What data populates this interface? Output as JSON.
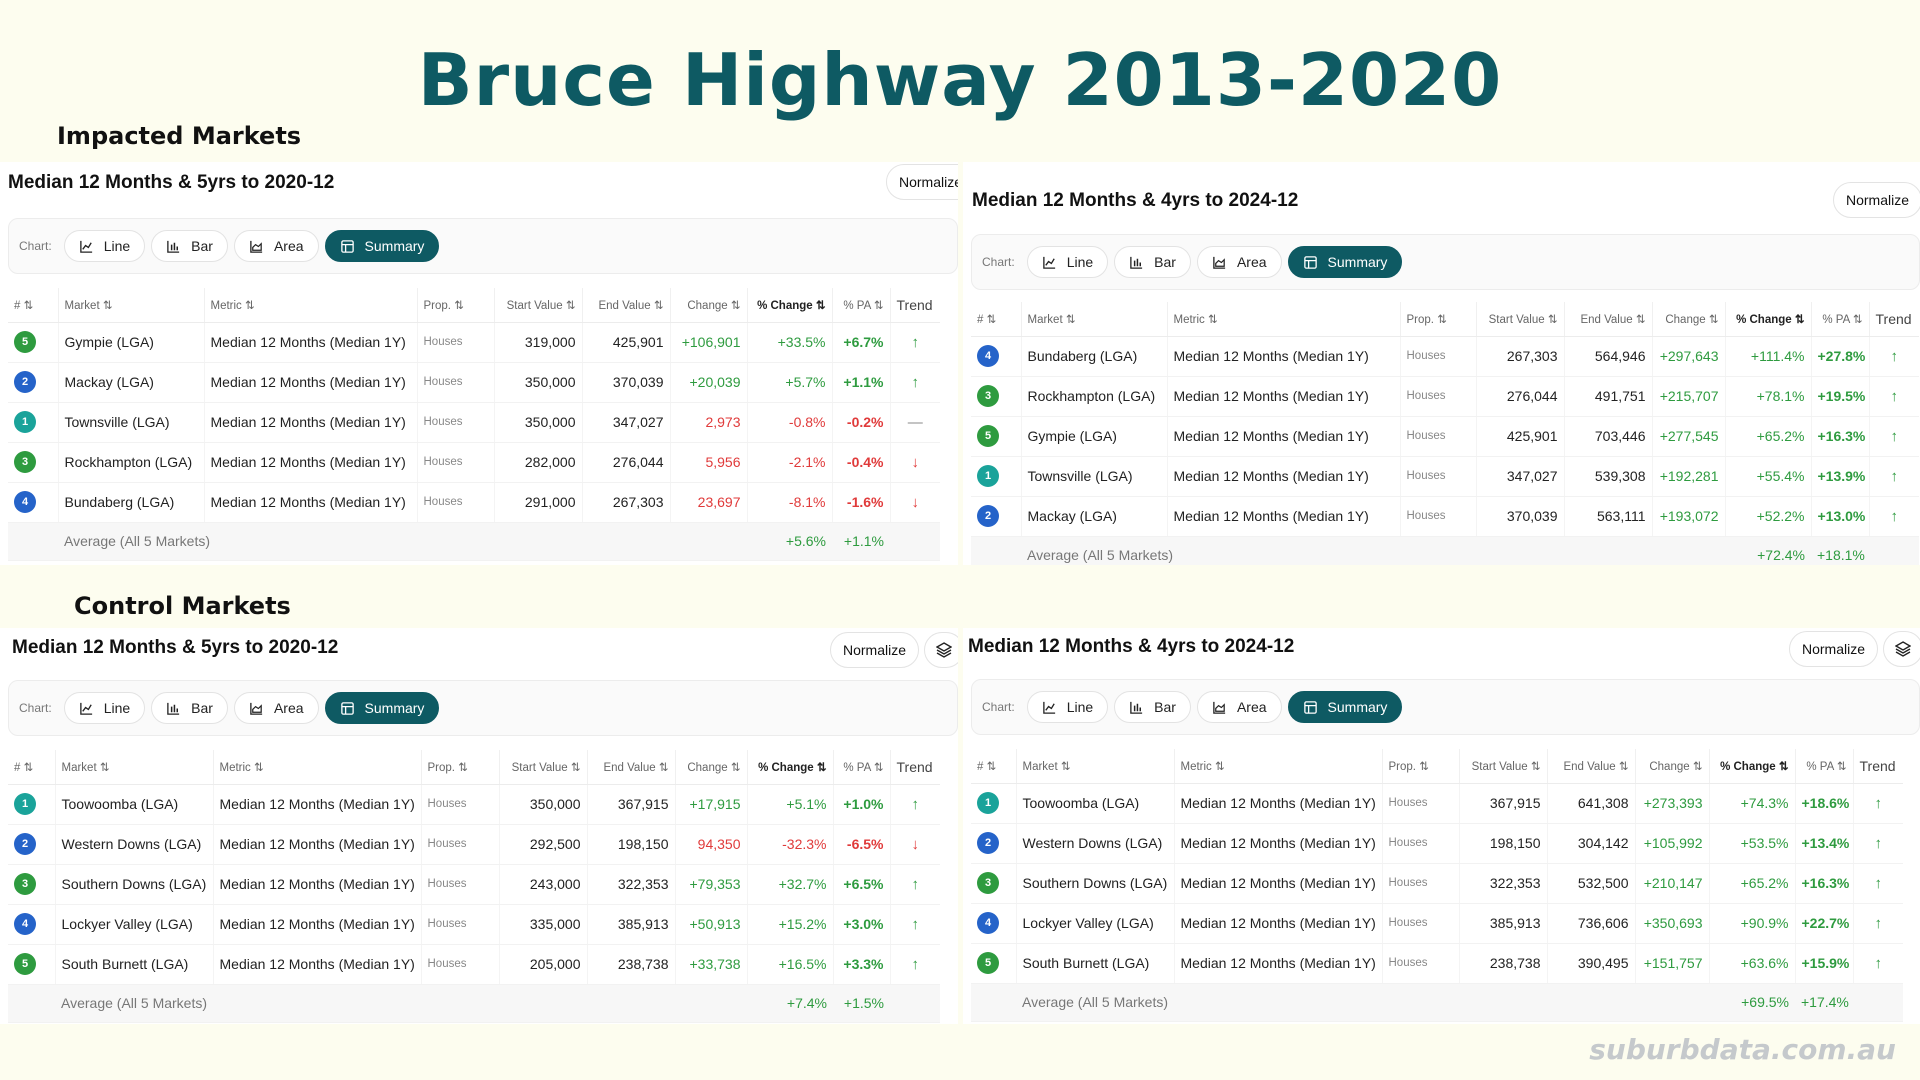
{
  "title": "Bruce Highway 2013-2020",
  "sections": {
    "impacted": "Impacted Markets",
    "control": "Control Markets"
  },
  "watermark": "suburbdata.com.au",
  "common": {
    "normalize": "Normalize",
    "chart_label": "Chart:",
    "chart_buttons": {
      "line": "Line",
      "bar": "Bar",
      "area": "Area",
      "summary": "Summary"
    },
    "columns": {
      "rank": "#",
      "market": "Market",
      "metric": "Metric",
      "prop": "Prop.",
      "start": "Start Value",
      "end": "End Value",
      "change": "Change",
      "pct_change": "% Change",
      "pa": "% PA",
      "trend": "Trend"
    },
    "sort_glyph": "⇅",
    "avg_label": "Average (All 5 Markets)"
  },
  "colors": {
    "accent": "#0e5a63",
    "positive": "#2e9b3f",
    "negative": "#e03a3a",
    "rank_green": "#2e9b3f",
    "rank_blue": "#2563c9",
    "rank_teal": "#1aa39a"
  },
  "panels": [
    {
      "title": "Median 12 Months & 5yrs to 2020-12",
      "rows": [
        {
          "rank": "5",
          "rank_color": "green",
          "market": "Gympie (LGA)",
          "metric": "Median 12 Months (Median 1Y)",
          "prop": "Houses",
          "start": "319,000",
          "end": "425,901",
          "change": "+106,901",
          "pct": "+33.5%",
          "pa": "+6.7%",
          "trend": "up"
        },
        {
          "rank": "2",
          "rank_color": "blue",
          "market": "Mackay (LGA)",
          "metric": "Median 12 Months (Median 1Y)",
          "prop": "Houses",
          "start": "350,000",
          "end": "370,039",
          "change": "+20,039",
          "pct": "+5.7%",
          "pa": "+1.1%",
          "trend": "up"
        },
        {
          "rank": "1",
          "rank_color": "teal",
          "market": "Townsville (LGA)",
          "metric": "Median 12 Months (Median 1Y)",
          "prop": "Houses",
          "start": "350,000",
          "end": "347,027",
          "change": "2,973",
          "pct": "-0.8%",
          "pa": "-0.2%",
          "trend": "flat"
        },
        {
          "rank": "3",
          "rank_color": "green",
          "market": "Rockhampton (LGA)",
          "metric": "Median 12 Months (Median 1Y)",
          "prop": "Houses",
          "start": "282,000",
          "end": "276,044",
          "change": "5,956",
          "pct": "-2.1%",
          "pa": "-0.4%",
          "trend": "down"
        },
        {
          "rank": "4",
          "rank_color": "blue",
          "market": "Bundaberg (LGA)",
          "metric": "Median 12 Months (Median 1Y)",
          "prop": "Houses",
          "start": "291,000",
          "end": "267,303",
          "change": "23,697",
          "pct": "-8.1%",
          "pa": "-1.6%",
          "trend": "down"
        }
      ],
      "avg": {
        "pct": "+5.6%",
        "pa": "+1.1%"
      }
    },
    {
      "title": "Median 12 Months & 4yrs to 2024-12",
      "rows": [
        {
          "rank": "4",
          "rank_color": "blue",
          "market": "Bundaberg (LGA)",
          "metric": "Median 12 Months (Median 1Y)",
          "prop": "Houses",
          "start": "267,303",
          "end": "564,946",
          "change": "+297,643",
          "pct": "+111.4%",
          "pa": "+27.8%",
          "trend": "up"
        },
        {
          "rank": "3",
          "rank_color": "green",
          "market": "Rockhampton (LGA)",
          "metric": "Median 12 Months (Median 1Y)",
          "prop": "Houses",
          "start": "276,044",
          "end": "491,751",
          "change": "+215,707",
          "pct": "+78.1%",
          "pa": "+19.5%",
          "trend": "up"
        },
        {
          "rank": "5",
          "rank_color": "green",
          "market": "Gympie (LGA)",
          "metric": "Median 12 Months (Median 1Y)",
          "prop": "Houses",
          "start": "425,901",
          "end": "703,446",
          "change": "+277,545",
          "pct": "+65.2%",
          "pa": "+16.3%",
          "trend": "up"
        },
        {
          "rank": "1",
          "rank_color": "teal",
          "market": "Townsville (LGA)",
          "metric": "Median 12 Months (Median 1Y)",
          "prop": "Houses",
          "start": "347,027",
          "end": "539,308",
          "change": "+192,281",
          "pct": "+55.4%",
          "pa": "+13.9%",
          "trend": "up"
        },
        {
          "rank": "2",
          "rank_color": "blue",
          "market": "Mackay (LGA)",
          "metric": "Median 12 Months (Median 1Y)",
          "prop": "Houses",
          "start": "370,039",
          "end": "563,111",
          "change": "+193,072",
          "pct": "+52.2%",
          "pa": "+13.0%",
          "trend": "up"
        }
      ],
      "avg": {
        "pct": "+72.4%",
        "pa": "+18.1%"
      }
    },
    {
      "title": "Median 12 Months & 5yrs to 2020-12",
      "rows": [
        {
          "rank": "1",
          "rank_color": "teal",
          "market": "Toowoomba (LGA)",
          "metric": "Median 12 Months (Median 1Y)",
          "prop": "Houses",
          "start": "350,000",
          "end": "367,915",
          "change": "+17,915",
          "pct": "+5.1%",
          "pa": "+1.0%",
          "trend": "up"
        },
        {
          "rank": "2",
          "rank_color": "blue",
          "market": "Western Downs (LGA)",
          "metric": "Median 12 Months (Median 1Y)",
          "prop": "Houses",
          "start": "292,500",
          "end": "198,150",
          "change": "94,350",
          "pct": "-32.3%",
          "pa": "-6.5%",
          "trend": "down"
        },
        {
          "rank": "3",
          "rank_color": "green",
          "market": "Southern Downs (LGA)",
          "metric": "Median 12 Months (Median 1Y)",
          "prop": "Houses",
          "start": "243,000",
          "end": "322,353",
          "change": "+79,353",
          "pct": "+32.7%",
          "pa": "+6.5%",
          "trend": "up"
        },
        {
          "rank": "4",
          "rank_color": "blue",
          "market": "Lockyer Valley (LGA)",
          "metric": "Median 12 Months (Median 1Y)",
          "prop": "Houses",
          "start": "335,000",
          "end": "385,913",
          "change": "+50,913",
          "pct": "+15.2%",
          "pa": "+3.0%",
          "trend": "up"
        },
        {
          "rank": "5",
          "rank_color": "green",
          "market": "South Burnett (LGA)",
          "metric": "Median 12 Months (Median 1Y)",
          "prop": "Houses",
          "start": "205,000",
          "end": "238,738",
          "change": "+33,738",
          "pct": "+16.5%",
          "pa": "+3.3%",
          "trend": "up"
        }
      ],
      "avg": {
        "pct": "+7.4%",
        "pa": "+1.5%"
      }
    },
    {
      "title": "Median 12 Months & 4yrs to 2024-12",
      "rows": [
        {
          "rank": "1",
          "rank_color": "teal",
          "market": "Toowoomba (LGA)",
          "metric": "Median 12 Months (Median 1Y)",
          "prop": "Houses",
          "start": "367,915",
          "end": "641,308",
          "change": "+273,393",
          "pct": "+74.3%",
          "pa": "+18.6%",
          "trend": "up"
        },
        {
          "rank": "2",
          "rank_color": "blue",
          "market": "Western Downs (LGA)",
          "metric": "Median 12 Months (Median 1Y)",
          "prop": "Houses",
          "start": "198,150",
          "end": "304,142",
          "change": "+105,992",
          "pct": "+53.5%",
          "pa": "+13.4%",
          "trend": "up"
        },
        {
          "rank": "3",
          "rank_color": "green",
          "market": "Southern Downs (LGA)",
          "metric": "Median 12 Months (Median 1Y)",
          "prop": "Houses",
          "start": "322,353",
          "end": "532,500",
          "change": "+210,147",
          "pct": "+65.2%",
          "pa": "+16.3%",
          "trend": "up"
        },
        {
          "rank": "4",
          "rank_color": "blue",
          "market": "Lockyer Valley (LGA)",
          "metric": "Median 12 Months (Median 1Y)",
          "prop": "Houses",
          "start": "385,913",
          "end": "736,606",
          "change": "+350,693",
          "pct": "+90.9%",
          "pa": "+22.7%",
          "trend": "up"
        },
        {
          "rank": "5",
          "rank_color": "green",
          "market": "South Burnett (LGA)",
          "metric": "Median 12 Months (Median 1Y)",
          "prop": "Houses",
          "start": "238,738",
          "end": "390,495",
          "change": "+151,757",
          "pct": "+63.6%",
          "pa": "+15.9%",
          "trend": "up"
        }
      ],
      "avg": {
        "pct": "+69.5%",
        "pa": "+17.4%"
      }
    }
  ]
}
